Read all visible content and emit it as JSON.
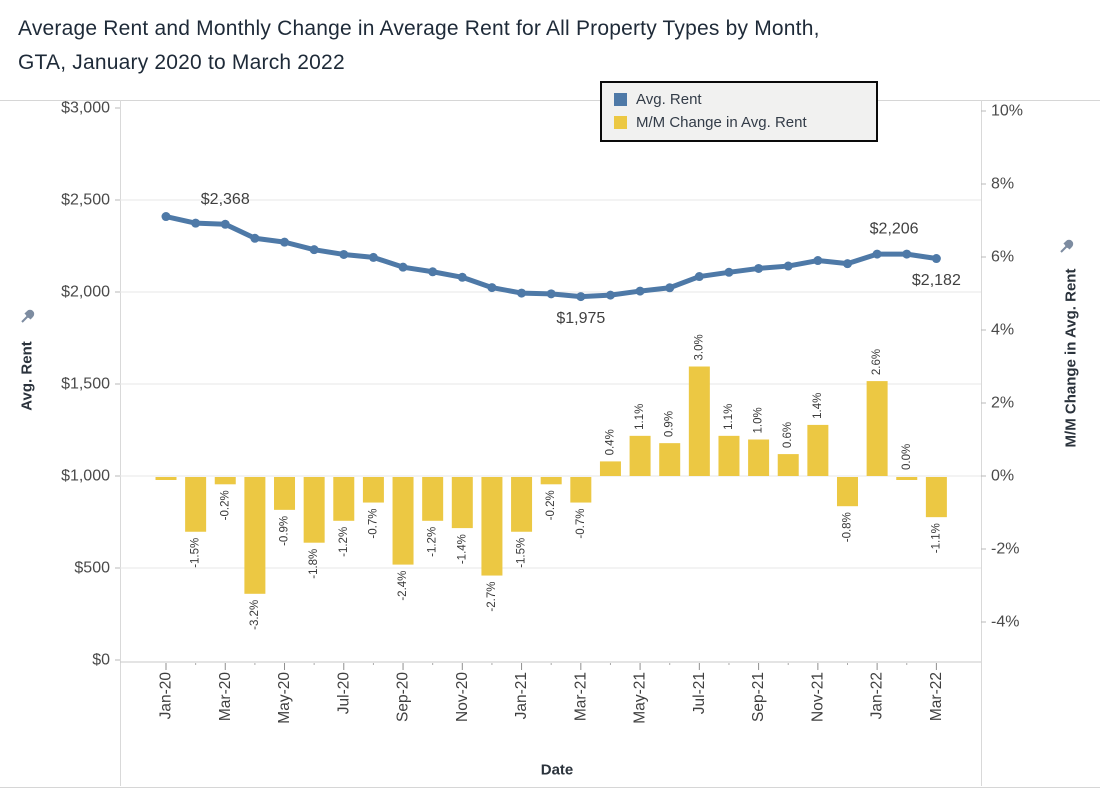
{
  "title": {
    "line1": "Average Rent and Monthly Change in Average Rent for All Property Types by Month,",
    "line2": "GTA, January 2020 to March 2022"
  },
  "legend": {
    "items": [
      {
        "label": "Avg. Rent",
        "color": "#4e79a7"
      },
      {
        "label": "M/M Change in Avg. Rent",
        "color": "#ecc843"
      }
    ]
  },
  "axes": {
    "left": {
      "title": "Avg. Rent",
      "ticks": [
        {
          "value": 0,
          "label": "$0"
        },
        {
          "value": 500,
          "label": "$500"
        },
        {
          "value": 1000,
          "label": "$1,000"
        },
        {
          "value": 1500,
          "label": "$1,500"
        },
        {
          "value": 2000,
          "label": "$2,000"
        },
        {
          "value": 2500,
          "label": "$2,500"
        },
        {
          "value": 3000,
          "label": "$3,000"
        }
      ]
    },
    "right": {
      "title": "M/M Change in Avg. Rent",
      "ticks": [
        {
          "value": 10,
          "label": "10%"
        },
        {
          "value": 8,
          "label": "8%"
        },
        {
          "value": 6,
          "label": "6%"
        },
        {
          "value": 4,
          "label": "4%"
        },
        {
          "value": 2,
          "label": "2%"
        },
        {
          "value": 0,
          "label": "0%"
        },
        {
          "value": -2,
          "label": "-2%"
        },
        {
          "value": -4,
          "label": "-4%"
        }
      ]
    },
    "x": {
      "title": "Date",
      "tick_labels": [
        "Jan-20",
        "Mar-20",
        "May-20",
        "Jul-20",
        "Sep-20",
        "Nov-20",
        "Jan-21",
        "Mar-21",
        "May-21",
        "Jul-21",
        "Sep-21",
        "Nov-21",
        "Jan-22",
        "Mar-22"
      ]
    }
  },
  "chart_data": {
    "type": "dual-axis line+bar",
    "categories": [
      "Jan-20",
      "Feb-20",
      "Mar-20",
      "Apr-20",
      "May-20",
      "Jun-20",
      "Jul-20",
      "Aug-20",
      "Sep-20",
      "Oct-20",
      "Nov-20",
      "Dec-20",
      "Jan-21",
      "Feb-21",
      "Mar-21",
      "Apr-21",
      "May-21",
      "Jun-21",
      "Jul-21",
      "Aug-21",
      "Sep-21",
      "Oct-21",
      "Nov-21",
      "Dec-21",
      "Jan-22",
      "Feb-22",
      "Mar-22"
    ],
    "series": [
      {
        "name": "Avg. Rent",
        "type": "line",
        "axis": "left",
        "color": "#4e79a7",
        "values": [
          2410,
          2374,
          2368,
          2292,
          2271,
          2230,
          2204,
          2188,
          2135,
          2110,
          2080,
          2024,
          1994,
          1990,
          1975,
          1983,
          2005,
          2023,
          2084,
          2107,
          2128,
          2141,
          2171,
          2154,
          2206,
          2206,
          2182
        ]
      },
      {
        "name": "M/M Change in Avg. Rent",
        "type": "bar",
        "axis": "right",
        "color": "#ecc843",
        "values": [
          null,
          -1.5,
          -0.2,
          -3.2,
          -0.9,
          -1.8,
          -1.2,
          -0.7,
          -2.4,
          -1.2,
          -1.4,
          -2.7,
          -1.5,
          -0.2,
          -0.7,
          0.4,
          1.1,
          0.9,
          3.0,
          1.1,
          1.0,
          0.6,
          1.4,
          -0.8,
          2.6,
          0.0,
          -1.1
        ],
        "labels": [
          "",
          "-1.5%",
          "-0.2%",
          "-3.2%",
          "-0.9%",
          "-1.8%",
          "-1.2%",
          "-0.7%",
          "-2.4%",
          "-1.2%",
          "-1.4%",
          "-2.7%",
          "-1.5%",
          "-0.2%",
          "-0.7%",
          "0.4%",
          "1.1%",
          "0.9%",
          "3.0%",
          "1.1%",
          "1.0%",
          "0.6%",
          "1.4%",
          "-0.8%",
          "2.6%",
          "0.0%",
          "-1.1%"
        ]
      }
    ],
    "annotations": [
      {
        "index": 2,
        "text": "$2,368",
        "placement": "above",
        "dx": 0
      },
      {
        "index": 14,
        "text": "$1,975",
        "placement": "below",
        "dx": 0
      },
      {
        "index": 24,
        "text": "$2,206",
        "placement": "above",
        "dx": 17
      },
      {
        "index": 26,
        "text": "$2,182",
        "placement": "below",
        "dx": 0
      }
    ],
    "left_axis_range": [
      0,
      3000
    ],
    "right_axis_range": [
      -4,
      10
    ],
    "x_label_every": 2,
    "grid": "horizontal-faint",
    "legend_position": "top"
  }
}
